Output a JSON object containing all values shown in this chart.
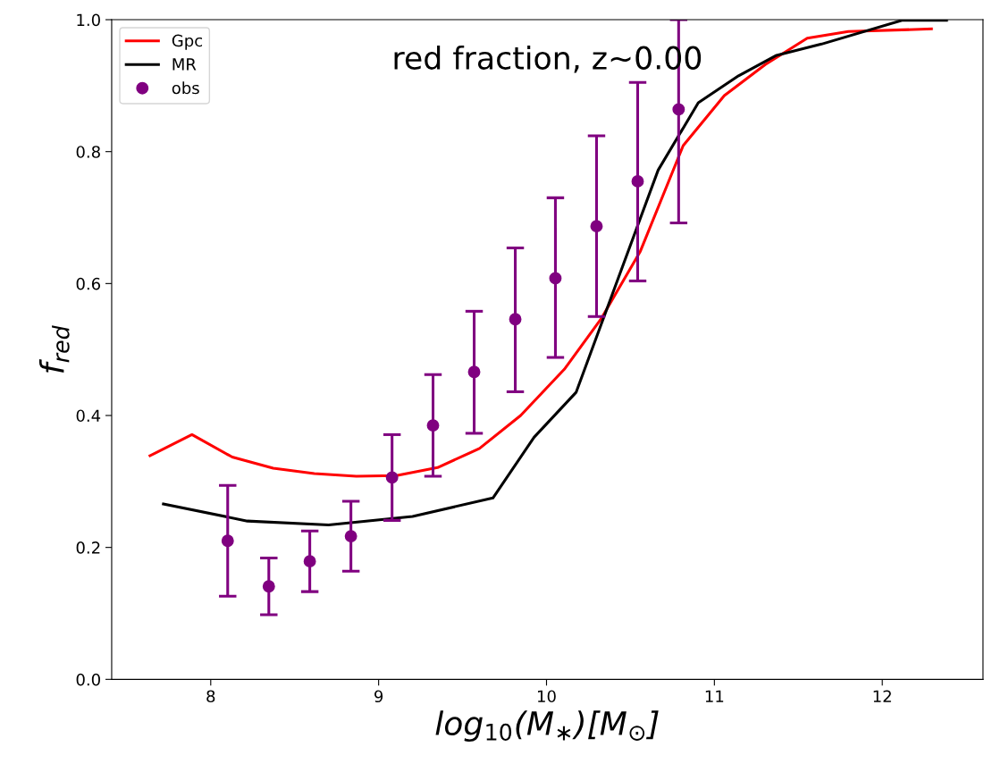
{
  "chart_data": {
    "type": "line",
    "title": "red fraction, z~0.00",
    "xlabel": "log$_{10}$(M$_{∗}$)[M$_{⊙}$]",
    "ylabel": "f$_{red}$",
    "xlim": [
      7.41,
      12.6
    ],
    "ylim": [
      0.0,
      1.0
    ],
    "xticks": [
      8,
      9,
      10,
      11,
      12
    ],
    "yticks": [
      {
        "value": 0.0,
        "label": "0.0"
      },
      {
        "value": 0.2,
        "label": "0.2"
      },
      {
        "value": 0.4,
        "label": "0.4"
      },
      {
        "value": 0.6,
        "label": "0.6"
      },
      {
        "value": 0.8,
        "label": "0.8"
      },
      {
        "value": 1.0,
        "label": "1.0"
      }
    ],
    "grid": false,
    "legend": "top left",
    "marker": "none",
    "line_style": "solid",
    "series": [
      {
        "name": "Gpc",
        "color": "#ff0000",
        "x": [
          7.638,
          7.888,
          8.128,
          8.372,
          8.617,
          8.867,
          9.106,
          9.351,
          9.601,
          9.846,
          10.106,
          10.324,
          10.559,
          10.814,
          11.059,
          11.303,
          11.553,
          11.798,
          12.293
        ],
        "values": [
          0.339,
          0.371,
          0.337,
          0.32,
          0.312,
          0.308,
          0.309,
          0.321,
          0.35,
          0.4,
          0.47,
          0.546,
          0.649,
          0.809,
          0.885,
          0.932,
          0.972,
          0.982,
          0.986
        ]
      },
      {
        "name": "MR",
        "color": "#000000",
        "x": [
          7.718,
          8.218,
          8.702,
          9.202,
          9.681,
          9.926,
          10.176,
          10.665,
          10.904,
          11.144,
          11.37,
          11.638,
          12.117,
          12.383
        ],
        "values": [
          0.266,
          0.24,
          0.234,
          0.247,
          0.275,
          0.367,
          0.435,
          0.772,
          0.874,
          0.915,
          0.946,
          0.963,
          0.999,
          0.999
        ]
      },
      {
        "name": "obs",
        "color": "#800080",
        "type": "scatter",
        "marker": "circle",
        "x": [
          8.101,
          8.346,
          8.59,
          8.835,
          9.08,
          9.324,
          9.569,
          9.814,
          10.053,
          10.298,
          10.543,
          10.787
        ],
        "values": [
          0.21,
          0.141,
          0.179,
          0.217,
          0.306,
          0.385,
          0.466,
          0.546,
          0.608,
          0.687,
          0.755,
          0.864
        ],
        "errors": [
          [
            0.126,
            0.294
          ],
          [
            0.098,
            0.184
          ],
          [
            0.133,
            0.225
          ],
          [
            0.164,
            0.27
          ],
          [
            0.241,
            0.371
          ],
          [
            0.308,
            0.462
          ],
          [
            0.373,
            0.558
          ],
          [
            0.436,
            0.654
          ],
          [
            0.488,
            0.73
          ],
          [
            0.55,
            0.824
          ],
          [
            0.604,
            0.905
          ],
          [
            0.692,
            1.0
          ]
        ]
      }
    ]
  }
}
